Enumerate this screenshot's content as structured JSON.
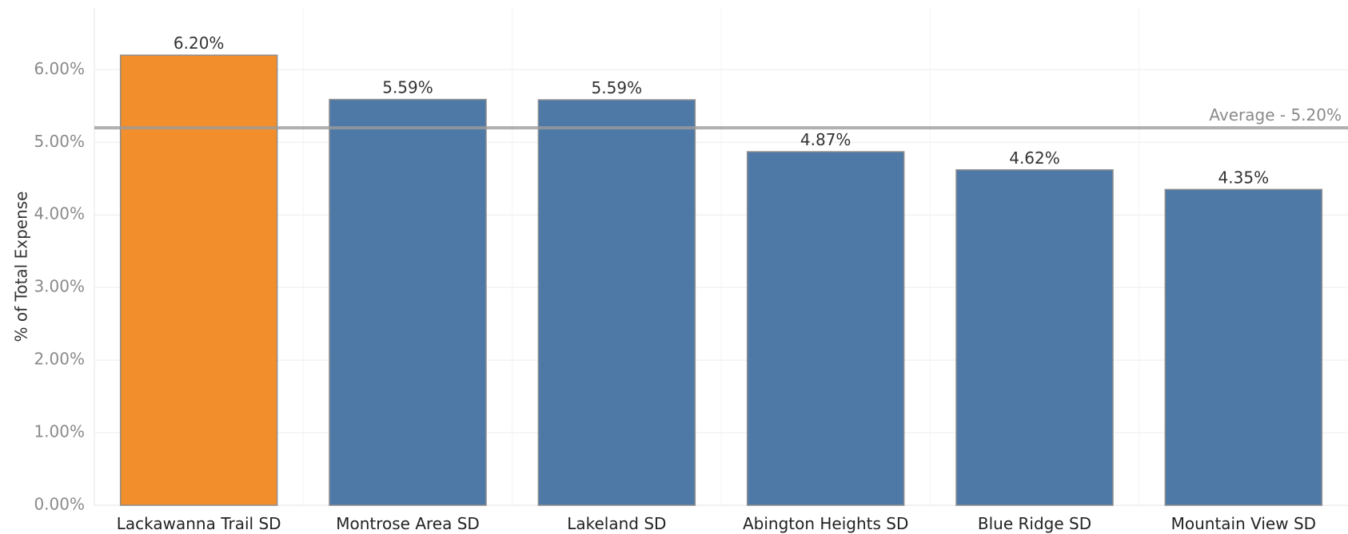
{
  "chart_data": {
    "type": "bar",
    "categories": [
      "Lackawanna Trail SD",
      "Montrose Area SD",
      "Lakeland SD",
      "Abington Heights SD",
      "Blue Ridge SD",
      "Mountain View SD"
    ],
    "values": [
      6.2,
      5.59,
      5.585,
      4.87,
      4.62,
      4.35
    ],
    "data_labels": [
      "6.20%",
      "5.59%",
      "5.59%",
      "4.87%",
      "4.62%",
      "4.35%"
    ],
    "bar_colors": [
      "#F28E2B",
      "#4E79A7",
      "#4E79A7",
      "#4E79A7",
      "#4E79A7",
      "#4E79A7"
    ],
    "ylabel": "% of Total Expense",
    "xlabel": "",
    "ylim": [
      0,
      6.85
    ],
    "yticks": [
      0,
      1,
      2,
      3,
      4,
      5,
      6
    ],
    "ytick_labels": [
      "0.00%",
      "1.00%",
      "2.00%",
      "3.00%",
      "4.00%",
      "5.00%",
      "6.00%"
    ],
    "reference_line": {
      "value": 5.2,
      "label": "Average - 5.20%",
      "color": "#9c9c9c"
    },
    "grid": true,
    "legend": "none"
  }
}
